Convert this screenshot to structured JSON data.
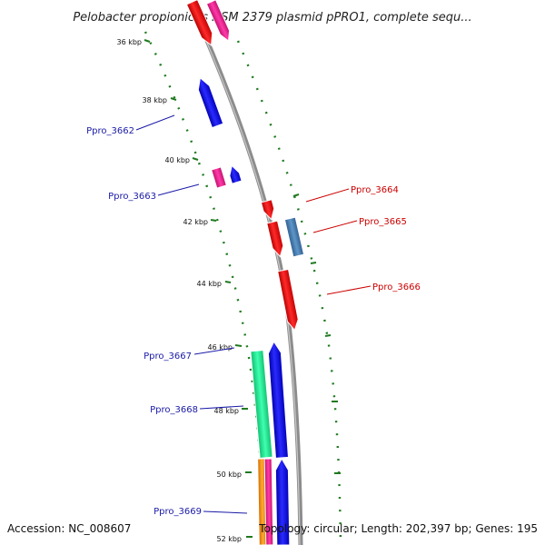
{
  "title": "Pelobacter propionicus DSM 2379 plasmid pPRO1, complete sequ...",
  "footer": {
    "accession": "Accession: NC_008607",
    "summary": "Topology: circular; Length: 202,397 bp; Genes: 195"
  },
  "ticks": [
    {
      "label": "36 kbp",
      "kbp": 36
    },
    {
      "label": "38 kbp",
      "kbp": 38
    },
    {
      "label": "40 kbp",
      "kbp": 40
    },
    {
      "label": "42 kbp",
      "kbp": 42
    },
    {
      "label": "44 kbp",
      "kbp": 44
    },
    {
      "label": "46 kbp",
      "kbp": 46
    },
    {
      "label": "48 kbp",
      "kbp": 48
    },
    {
      "label": "50 kbp",
      "kbp": 50
    },
    {
      "label": "52 kbp",
      "kbp": 52
    }
  ],
  "gene_labels": {
    "left": [
      "Ppro_3662",
      "Ppro_3663",
      "Ppro_3667",
      "Ppro_3668",
      "Ppro_3669"
    ],
    "right": [
      "Ppro_3664",
      "Ppro_3665",
      "Ppro_3666"
    ]
  },
  "colors": {
    "backbone": "#8c8c8c",
    "tick_dots": "#1f7a1f",
    "left_label": "#1a1aa8",
    "right_label": "#cc0000",
    "gene_red": "#ff1a1a",
    "gene_blue": "#1a1aff",
    "gene_magenta": "#ff2aa0",
    "gene_steel": "#4a7fb5",
    "gene_teal": "#2affa0",
    "gene_orange": "#ff9a1a"
  }
}
